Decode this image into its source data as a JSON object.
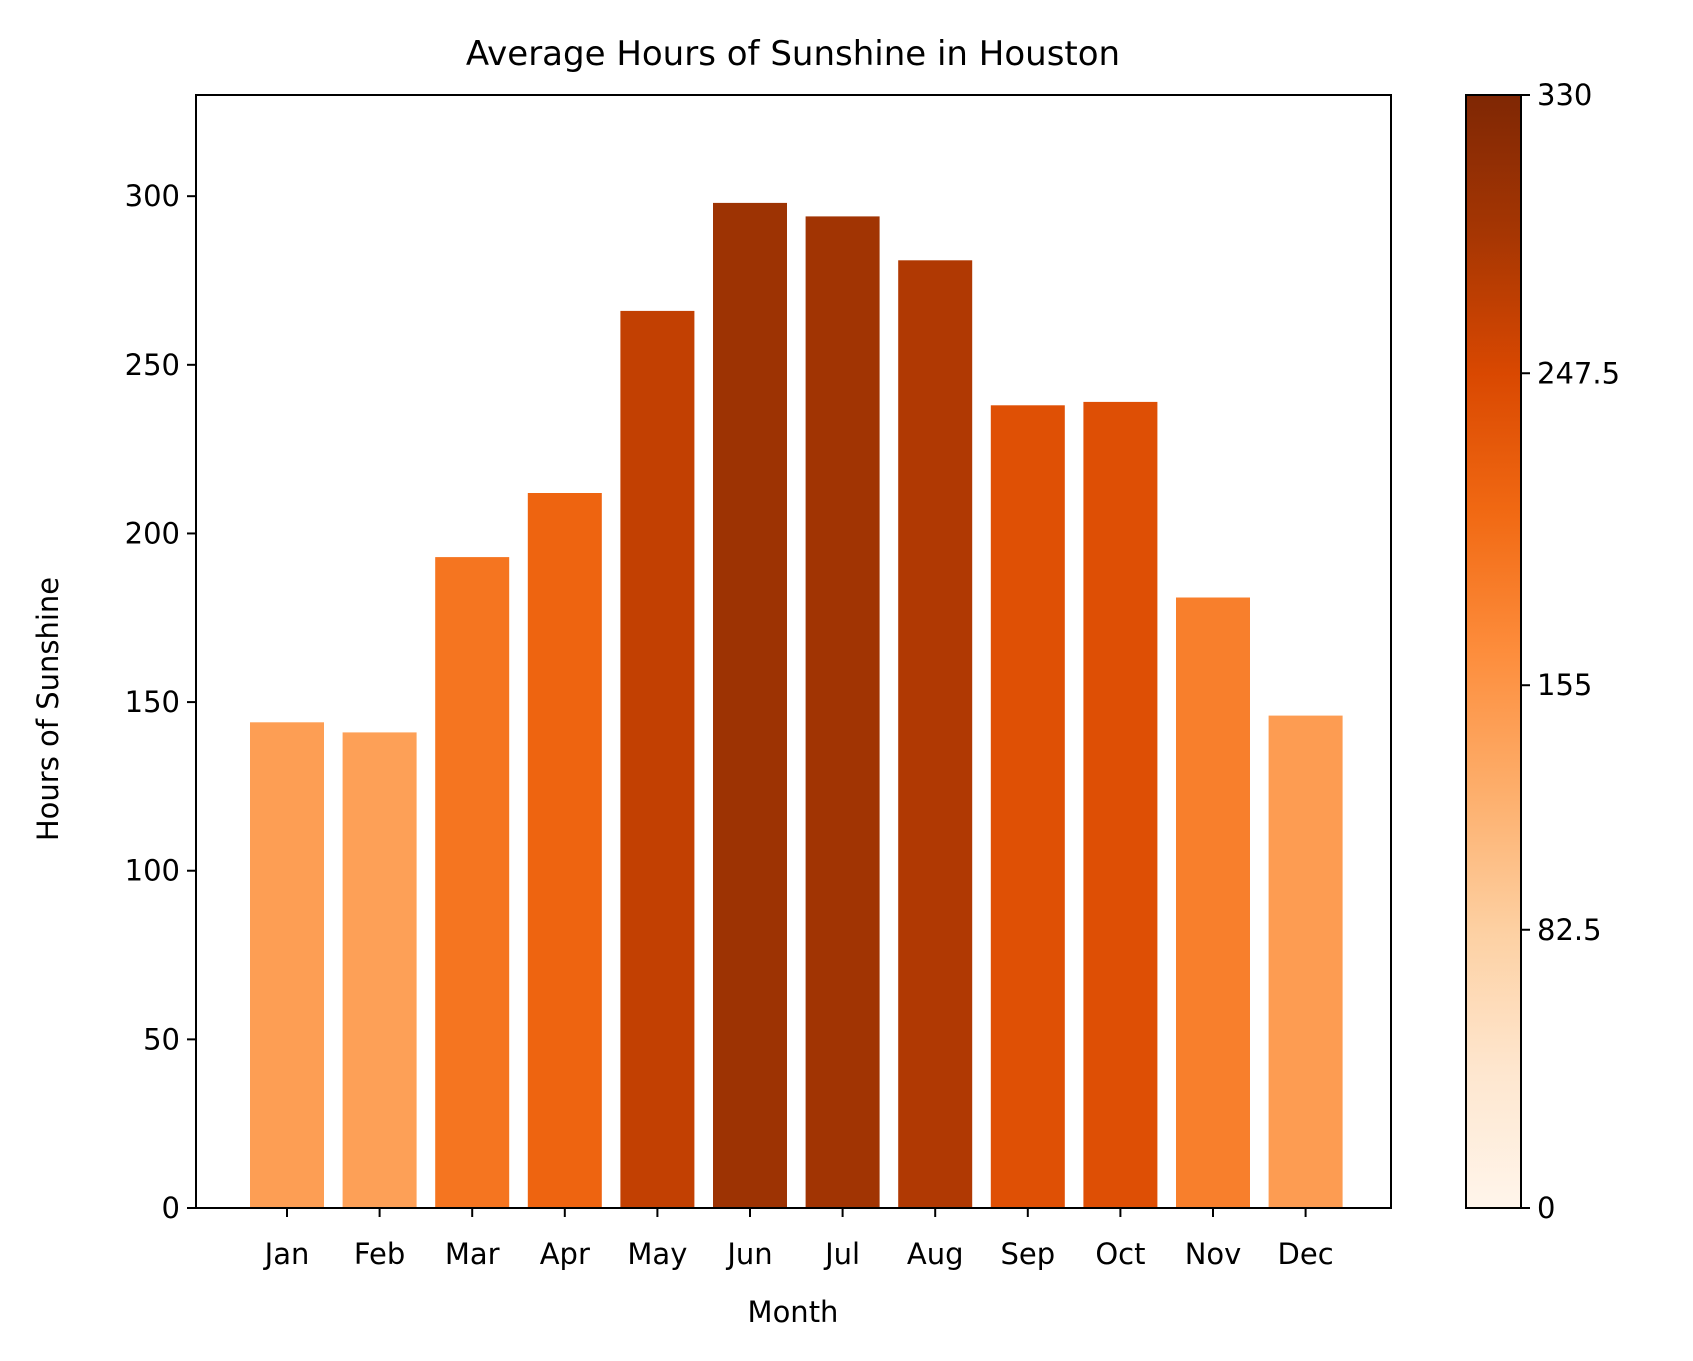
{
  "chart_data": {
    "type": "bar",
    "title": "Average Hours of Sunshine in Houston",
    "xlabel": "Month",
    "ylabel": "Hours of Sunshine",
    "categories": [
      "Jan",
      "Feb",
      "Mar",
      "Apr",
      "May",
      "Jun",
      "Jul",
      "Aug",
      "Sep",
      "Oct",
      "Nov",
      "Dec"
    ],
    "values": [
      144,
      141,
      193,
      212,
      266,
      298,
      294,
      281,
      238,
      239,
      181,
      146
    ],
    "ylim": [
      0,
      330
    ],
    "yticks": [
      0,
      50,
      100,
      150,
      200,
      250,
      300
    ],
    "grid": false,
    "legend": "none",
    "colorbar": {
      "colormap": "Oranges",
      "range": [
        0,
        330
      ],
      "ticks": [
        0,
        82.5,
        155,
        247.5,
        330
      ],
      "tick_labels": [
        "0",
        "82.5",
        "155",
        "247.5",
        "330"
      ]
    }
  }
}
